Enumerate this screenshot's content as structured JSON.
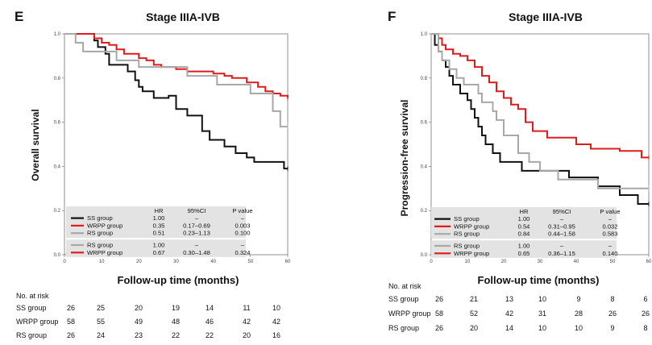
{
  "chart_data": [
    {
      "type": "line",
      "step": true,
      "panel_letter": "E",
      "title": "Stage IIIA-IVB",
      "xlabel": "Follow-up time (months)",
      "ylabel": "Overall survival",
      "xlim": [
        0,
        60
      ],
      "ylim": [
        0,
        1.0
      ],
      "x_ticks": [
        "0",
        "10",
        "20",
        "30",
        "40",
        "50",
        "60"
      ],
      "y_ticks": [
        "0.0",
        "0.2",
        "0.4",
        "0.6",
        "0.8",
        "1.0"
      ],
      "series": [
        {
          "name": "SS group",
          "color": "#111111",
          "x": [
            0,
            6,
            8,
            9,
            10,
            11,
            12,
            14,
            17,
            19,
            20,
            21,
            23,
            24,
            26,
            28,
            30,
            31,
            33,
            35,
            37,
            39,
            41,
            43,
            46,
            49,
            51,
            53,
            55,
            57,
            59,
            60
          ],
          "y": [
            1.0,
            1.0,
            0.97,
            0.94,
            0.94,
            0.91,
            0.86,
            0.86,
            0.83,
            0.79,
            0.76,
            0.74,
            0.74,
            0.71,
            0.71,
            0.72,
            0.66,
            0.66,
            0.63,
            0.63,
            0.56,
            0.52,
            0.52,
            0.49,
            0.46,
            0.44,
            0.42,
            0.42,
            0.42,
            0.42,
            0.39,
            0.39
          ]
        },
        {
          "name": "WRPP group",
          "color": "#e01b1b",
          "x": [
            0,
            6,
            8,
            10,
            12,
            14,
            16,
            18,
            20,
            22,
            24,
            26,
            28,
            30,
            33,
            36,
            38,
            40,
            43,
            45,
            47,
            49,
            52,
            54,
            56,
            58,
            60
          ],
          "y": [
            1.0,
            1.0,
            0.98,
            0.96,
            0.95,
            0.93,
            0.91,
            0.91,
            0.89,
            0.88,
            0.86,
            0.85,
            0.85,
            0.84,
            0.83,
            0.83,
            0.83,
            0.82,
            0.81,
            0.8,
            0.8,
            0.78,
            0.76,
            0.74,
            0.73,
            0.72,
            0.71
          ]
        },
        {
          "name": "RS group",
          "color": "#a8a8a8",
          "x": [
            0,
            3,
            5,
            10,
            14,
            20,
            28,
            33,
            38,
            41,
            44,
            47,
            50,
            54,
            56,
            58,
            60
          ],
          "y": [
            1.0,
            0.96,
            0.92,
            0.92,
            0.88,
            0.85,
            0.85,
            0.81,
            0.81,
            0.77,
            0.77,
            0.77,
            0.73,
            0.73,
            0.65,
            0.58,
            0.58
          ]
        }
      ],
      "hr_table": {
        "headers": [
          "",
          "HR",
          "95%CI",
          "P value"
        ],
        "rows": [
          {
            "label": "SS group",
            "hr": "1.00",
            "ci": "–",
            "p": "–",
            "color": "#111111"
          },
          {
            "label": "WRPP group",
            "hr": "0.35",
            "ci": "0.17–0.69",
            "p": "0.003",
            "color": "#e01b1b"
          },
          {
            "label": "RS group",
            "hr": "0.51",
            "ci": "0.23–1.13",
            "p": "0.100",
            "color": "#a8a8a8"
          }
        ],
        "rows2": [
          {
            "label": "RS group",
            "hr": "1.00",
            "ci": "–",
            "p": "–",
            "color": "#a8a8a8"
          },
          {
            "label": "WRPP group",
            "hr": "0.67",
            "ci": "0.30–1.48",
            "p": "0.324",
            "color": "#e01b1b"
          }
        ]
      },
      "risk_table": {
        "title": "No. at risk",
        "groups": [
          {
            "label": "SS group",
            "counts": [
              "26",
              "25",
              "20",
              "19",
              "14",
              "11",
              "10"
            ]
          },
          {
            "label": "WRPP group",
            "counts": [
              "58",
              "55",
              "49",
              "48",
              "46",
              "42",
              "42"
            ]
          },
          {
            "label": "RS group",
            "counts": [
              "26",
              "24",
              "23",
              "22",
              "22",
              "20",
              "16"
            ]
          }
        ]
      }
    },
    {
      "type": "line",
      "step": true,
      "panel_letter": "F",
      "title": "Stage IIIA-IVB",
      "xlabel": "Follow-up time (months)",
      "ylabel": "Progression-free survival",
      "xlim": [
        0,
        60
      ],
      "ylim": [
        0,
        1.0
      ],
      "x_ticks": [
        "0",
        "10",
        "20",
        "30",
        "40",
        "50",
        "60"
      ],
      "y_ticks": [
        "0.0",
        "0.2",
        "0.4",
        "0.6",
        "0.8",
        "1.0"
      ],
      "series": [
        {
          "name": "SS group",
          "color": "#111111",
          "x": [
            0,
            1,
            2,
            3,
            4,
            5,
            6,
            8,
            10,
            11,
            12,
            13,
            14,
            15,
            17,
            19,
            22,
            25,
            30,
            38,
            46,
            52,
            54,
            57,
            60
          ],
          "y": [
            1.0,
            0.95,
            0.92,
            0.88,
            0.85,
            0.81,
            0.77,
            0.73,
            0.7,
            0.66,
            0.62,
            0.58,
            0.54,
            0.5,
            0.46,
            0.42,
            0.42,
            0.38,
            0.38,
            0.35,
            0.31,
            0.27,
            0.27,
            0.23,
            0.23
          ]
        },
        {
          "name": "WRPP group",
          "color": "#e01b1b",
          "x": [
            0,
            2,
            3,
            4,
            6,
            8,
            10,
            12,
            14,
            16,
            18,
            20,
            22,
            24,
            26,
            28,
            32,
            36,
            40,
            44,
            48,
            52,
            56,
            58,
            60
          ],
          "y": [
            1.0,
            0.98,
            0.95,
            0.93,
            0.91,
            0.9,
            0.88,
            0.85,
            0.81,
            0.78,
            0.74,
            0.71,
            0.68,
            0.66,
            0.6,
            0.56,
            0.53,
            0.53,
            0.5,
            0.48,
            0.48,
            0.47,
            0.47,
            0.44,
            0.44
          ]
        },
        {
          "name": "RS group",
          "color": "#a8a8a8",
          "x": [
            0,
            2,
            3,
            5,
            7,
            9,
            13,
            14,
            17,
            18,
            20,
            24,
            27,
            30,
            35,
            40,
            46,
            51,
            55,
            57,
            60
          ],
          "y": [
            1.0,
            0.92,
            0.88,
            0.84,
            0.8,
            0.77,
            0.73,
            0.69,
            0.65,
            0.61,
            0.54,
            0.46,
            0.42,
            0.38,
            0.34,
            0.34,
            0.3,
            0.3,
            0.3,
            0.3,
            0.3
          ]
        }
      ],
      "hr_table": {
        "headers": [
          "",
          "HR",
          "95%CI",
          "P value"
        ],
        "rows": [
          {
            "label": "SS group",
            "hr": "1.00",
            "ci": "–",
            "p": "–",
            "color": "#111111"
          },
          {
            "label": "WRPP group",
            "hr": "0.54",
            "ci": "0.31–0.95",
            "p": "0.032",
            "color": "#e01b1b"
          },
          {
            "label": "RS group",
            "hr": "0.84",
            "ci": "0.44–1.58",
            "p": "0.583",
            "color": "#a8a8a8"
          }
        ],
        "rows2": [
          {
            "label": "RS group",
            "hr": "1.00",
            "ci": "–",
            "p": "–",
            "color": "#a8a8a8"
          },
          {
            "label": "WRPP group",
            "hr": "0.65",
            "ci": "0.36–1.15",
            "p": "0.140",
            "color": "#e01b1b"
          }
        ]
      },
      "risk_table": {
        "title": "No. at risk",
        "groups": [
          {
            "label": "SS group",
            "counts": [
              "26",
              "21",
              "13",
              "10",
              "9",
              "8",
              "6"
            ]
          },
          {
            "label": "WRPP group",
            "counts": [
              "58",
              "52",
              "42",
              "31",
              "28",
              "26",
              "26"
            ]
          },
          {
            "label": "RS group",
            "counts": [
              "26",
              "20",
              "14",
              "10",
              "10",
              "9",
              "8"
            ]
          }
        ]
      }
    }
  ]
}
